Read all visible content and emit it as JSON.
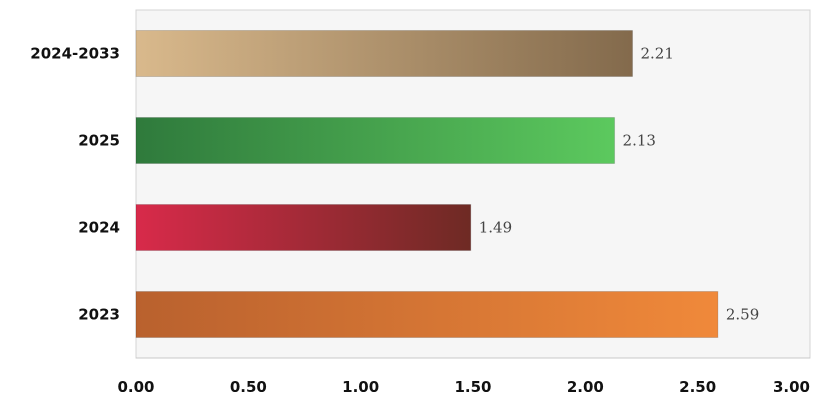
{
  "chart_data": {
    "type": "bar",
    "orientation": "horizontal",
    "categories": [
      "2024-2033",
      "2025",
      "2024",
      "2023"
    ],
    "values": [
      2.21,
      2.13,
      1.49,
      2.59
    ],
    "data_labels": [
      "2.21",
      "2.13",
      "1.49",
      "2.59"
    ],
    "x_ticks": [
      "0.00",
      "0.50",
      "1.00",
      "1.50",
      "2.00",
      "2.50",
      "3.00"
    ],
    "xlim": [
      0,
      3
    ],
    "title": "",
    "xlabel": "",
    "ylabel": "",
    "grid": false,
    "legend": "none",
    "bar_colors": [
      {
        "light": "#d9b98c",
        "dark": "#836a4c"
      },
      {
        "light": "#2f7a3c",
        "dark": "#5cc95e"
      },
      {
        "light": "#d82a4a",
        "dark": "#6e2a24"
      },
      {
        "light": "#b9612e",
        "dark": "#f0893a"
      }
    ]
  }
}
